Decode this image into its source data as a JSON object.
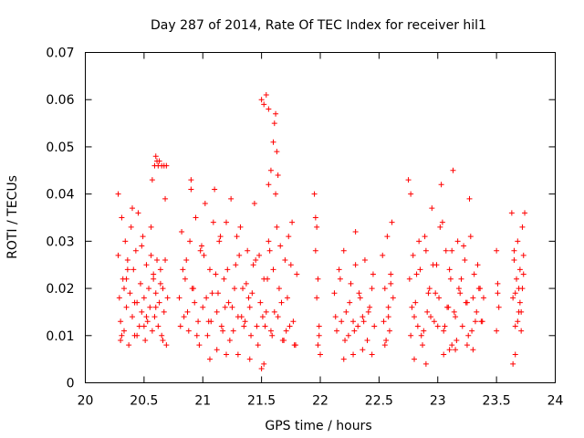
{
  "chart_data": {
    "type": "scatter",
    "title": "Day 287 of 2014, Rate Of TEC Index for receiver hil1",
    "xlabel": "GPS time / hours",
    "ylabel": "ROTI / TECUs",
    "xlim": [
      20,
      24
    ],
    "ylim": [
      0,
      0.07
    ],
    "xticks": [
      "20",
      "20.5",
      "21",
      "21.5",
      "22",
      "22.5",
      "23",
      "23.5",
      "24"
    ],
    "yticks": [
      "0",
      "0.01",
      "0.02",
      "0.03",
      "0.04",
      "0.05",
      "0.06",
      "0.07"
    ],
    "marker": "+",
    "color": "#ff0000",
    "grid": false,
    "series": [
      {
        "name": "hil1",
        "x": [
          20.28,
          20.29,
          20.3,
          20.31,
          20.32,
          20.33,
          20.34,
          20.35,
          20.36,
          20.37,
          20.38,
          20.39,
          20.4,
          20.41,
          20.42,
          20.43,
          20.44,
          20.45,
          20.46,
          20.47,
          20.48,
          20.49,
          20.5,
          20.51,
          20.52,
          20.53,
          20.54,
          20.55,
          20.56,
          20.57,
          20.58,
          20.59,
          20.6,
          20.61,
          20.62,
          20.63,
          20.64,
          20.65,
          20.66,
          20.67,
          20.68,
          20.69,
          20.7,
          20.28,
          20.3,
          20.33,
          20.36,
          20.4,
          20.44,
          20.48,
          20.52,
          20.56,
          20.6,
          20.64,
          20.68,
          20.31,
          20.35,
          20.42,
          20.5,
          20.58,
          20.66,
          20.57,
          20.59,
          20.6,
          20.61,
          20.62,
          20.63,
          20.65,
          20.67,
          20.69,
          20.8,
          20.82,
          20.84,
          20.86,
          20.88,
          20.9,
          20.92,
          20.94,
          20.96,
          20.98,
          21.0,
          21.02,
          21.04,
          21.06,
          21.08,
          21.1,
          21.12,
          21.14,
          21.16,
          21.18,
          21.2,
          21.22,
          21.24,
          21.26,
          21.28,
          21.3,
          21.32,
          21.34,
          21.36,
          21.38,
          21.4,
          21.42,
          21.44,
          21.46,
          21.48,
          21.5,
          21.52,
          21.54,
          21.56,
          21.58,
          21.6,
          21.62,
          21.64,
          21.66,
          21.68,
          21.7,
          21.72,
          21.74,
          21.76,
          21.78,
          21.8,
          20.81,
          20.85,
          20.89,
          20.93,
          20.97,
          21.01,
          21.05,
          21.09,
          21.13,
          21.17,
          21.21,
          21.25,
          21.29,
          21.33,
          21.37,
          21.41,
          21.45,
          21.49,
          21.53,
          21.57,
          21.61,
          21.65,
          21.69,
          21.73,
          21.77,
          20.83,
          20.87,
          20.91,
          20.95,
          20.99,
          21.03,
          21.07,
          21.11,
          21.15,
          21.19,
          21.23,
          21.27,
          21.31,
          21.35,
          21.39,
          21.43,
          21.47,
          21.51,
          21.55,
          21.59,
          21.63,
          21.67,
          21.71,
          21.75,
          21.79,
          20.9,
          21.06,
          21.12,
          21.2,
          21.3,
          21.4,
          21.52,
          21.56,
          21.58,
          21.6,
          21.61,
          21.62,
          21.63,
          21.64,
          21.5,
          21.52,
          21.54,
          21.56,
          21.95,
          21.96,
          21.97,
          21.98,
          21.99,
          22.0,
          21.96,
          21.98,
          21.97,
          21.99,
          22.12,
          22.14,
          22.16,
          22.18,
          22.2,
          22.22,
          22.24,
          22.26,
          22.28,
          22.3,
          22.32,
          22.34,
          22.36,
          22.38,
          22.4,
          22.42,
          22.44,
          22.46,
          22.13,
          22.17,
          22.21,
          22.25,
          22.29,
          22.33,
          22.37,
          22.41,
          22.45,
          22.2,
          22.28,
          22.36,
          22.44,
          22.3,
          22.53,
          22.54,
          22.55,
          22.56,
          22.57,
          22.58,
          22.59,
          22.6,
          22.61,
          22.62,
          22.55,
          22.58,
          22.6,
          22.75,
          22.77,
          22.79,
          22.81,
          22.83,
          22.85,
          22.87,
          22.89,
          22.91,
          22.93,
          22.95,
          22.97,
          22.99,
          23.01,
          23.03,
          23.05,
          23.07,
          23.09,
          23.11,
          23.13,
          23.15,
          23.17,
          23.19,
          23.21,
          23.23,
          23.25,
          23.27,
          23.29,
          23.31,
          23.33,
          23.35,
          23.37,
          23.39,
          22.76,
          22.8,
          22.84,
          22.88,
          22.92,
          22.96,
          23.0,
          23.04,
          23.08,
          23.12,
          23.16,
          23.2,
          23.24,
          23.28,
          23.32,
          23.36,
          22.78,
          22.82,
          22.86,
          22.9,
          22.94,
          22.98,
          23.02,
          23.06,
          23.1,
          23.14,
          23.18,
          23.22,
          23.26,
          23.3,
          23.34,
          23.38,
          22.77,
          22.8,
          22.9,
          23.05,
          23.1,
          23.12,
          23.15,
          23.25,
          23.3,
          23.5,
          23.51,
          23.5,
          23.51,
          23.52,
          23.63,
          23.64,
          23.65,
          23.66,
          23.67,
          23.68,
          23.69,
          23.7,
          23.71,
          23.72,
          23.73,
          23.74,
          23.64,
          23.66,
          23.68,
          23.7,
          23.72,
          23.65,
          23.69,
          23.73,
          23.66,
          23.71
        ],
        "y": [
          0.04,
          0.018,
          0.009,
          0.035,
          0.022,
          0.011,
          0.03,
          0.016,
          0.026,
          0.008,
          0.019,
          0.033,
          0.014,
          0.024,
          0.01,
          0.028,
          0.017,
          0.036,
          0.012,
          0.021,
          0.015,
          0.031,
          0.018,
          0.009,
          0.025,
          0.013,
          0.02,
          0.016,
          0.027,
          0.011,
          0.022,
          0.014,
          0.019,
          0.026,
          0.012,
          0.017,
          0.024,
          0.01,
          0.02,
          0.015,
          0.039,
          0.008,
          0.018,
          0.027,
          0.013,
          0.02,
          0.024,
          0.037,
          0.01,
          0.029,
          0.014,
          0.033,
          0.016,
          0.021,
          0.026,
          0.01,
          0.022,
          0.017,
          0.012,
          0.023,
          0.009,
          0.043,
          0.046,
          0.048,
          0.047,
          0.046,
          0.047,
          0.046,
          0.046,
          0.046,
          0.018,
          0.032,
          0.014,
          0.026,
          0.011,
          0.041,
          0.02,
          0.035,
          0.013,
          0.028,
          0.016,
          0.038,
          0.01,
          0.024,
          0.019,
          0.041,
          0.015,
          0.03,
          0.012,
          0.022,
          0.034,
          0.017,
          0.039,
          0.011,
          0.025,
          0.014,
          0.033,
          0.02,
          0.013,
          0.028,
          0.016,
          0.019,
          0.038,
          0.012,
          0.027,
          0.003,
          0.022,
          0.015,
          0.03,
          0.011,
          0.024,
          0.04,
          0.014,
          0.029,
          0.009,
          0.026,
          0.018,
          0.012,
          0.034,
          0.008,
          0.023,
          0.012,
          0.022,
          0.03,
          0.017,
          0.008,
          0.027,
          0.013,
          0.034,
          0.019,
          0.011,
          0.024,
          0.016,
          0.031,
          0.014,
          0.021,
          0.01,
          0.026,
          0.017,
          0.012,
          0.028,
          0.015,
          0.02,
          0.009,
          0.031,
          0.013,
          0.024,
          0.015,
          0.02,
          0.01,
          0.029,
          0.018,
          0.013,
          0.023,
          0.031,
          0.016,
          0.009,
          0.02,
          0.027,
          0.012,
          0.018,
          0.025,
          0.008,
          0.014,
          0.022,
          0.01,
          0.033,
          0.017,
          0.011,
          0.025,
          0.008,
          0.043,
          0.005,
          0.007,
          0.006,
          0.006,
          0.005,
          0.004,
          0.042,
          0.045,
          0.051,
          0.055,
          0.057,
          0.049,
          0.044,
          0.06,
          0.059,
          0.061,
          0.058,
          0.04,
          0.035,
          0.018,
          0.008,
          0.012,
          0.006,
          0.028,
          0.022,
          0.033,
          0.01,
          0.019,
          0.011,
          0.024,
          0.013,
          0.028,
          0.015,
          0.01,
          0.021,
          0.013,
          0.025,
          0.012,
          0.018,
          0.014,
          0.026,
          0.009,
          0.016,
          0.02,
          0.012,
          0.014,
          0.022,
          0.009,
          0.017,
          0.011,
          0.019,
          0.013,
          0.015,
          0.023,
          0.005,
          0.006,
          0.007,
          0.006,
          0.032,
          0.027,
          0.013,
          0.02,
          0.009,
          0.031,
          0.016,
          0.011,
          0.023,
          0.034,
          0.018,
          0.008,
          0.014,
          0.021,
          0.043,
          0.01,
          0.027,
          0.017,
          0.012,
          0.024,
          0.008,
          0.031,
          0.015,
          0.02,
          0.037,
          0.013,
          0.025,
          0.018,
          0.042,
          0.011,
          0.028,
          0.016,
          0.022,
          0.045,
          0.014,
          0.03,
          0.019,
          0.012,
          0.026,
          0.017,
          0.039,
          0.011,
          0.023,
          0.015,
          0.02,
          0.013,
          0.018,
          0.022,
          0.014,
          0.03,
          0.011,
          0.019,
          0.025,
          0.012,
          0.034,
          0.016,
          0.028,
          0.009,
          0.022,
          0.017,
          0.031,
          0.013,
          0.02,
          0.016,
          0.023,
          0.01,
          0.028,
          0.014,
          0.019,
          0.033,
          0.012,
          0.024,
          0.015,
          0.02,
          0.029,
          0.01,
          0.018,
          0.025,
          0.013,
          0.04,
          0.005,
          0.004,
          0.006,
          0.007,
          0.008,
          0.007,
          0.008,
          0.007,
          0.028,
          0.019,
          0.011,
          0.021,
          0.016,
          0.036,
          0.018,
          0.026,
          0.012,
          0.022,
          0.03,
          0.015,
          0.024,
          0.011,
          0.02,
          0.027,
          0.036,
          0.004,
          0.006,
          0.013,
          0.017,
          0.033,
          0.028,
          0.02,
          0.023,
          0.019,
          0.015
        ]
      }
    ]
  }
}
